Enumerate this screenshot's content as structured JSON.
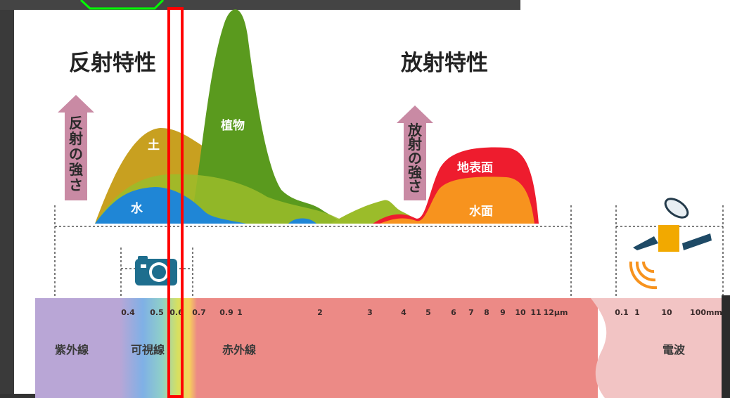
{
  "titles": {
    "reflection": "反射特性",
    "emission": "放射特性"
  },
  "axis_arrows": {
    "reflection_strength": [
      "反",
      "射",
      "の",
      "強",
      "さ"
    ],
    "emission_strength": [
      "放",
      "射",
      "の",
      "強",
      "さ"
    ]
  },
  "curve_labels": {
    "soil": "土",
    "water": "水",
    "vegetation": "植物",
    "ground_surface": "地表面",
    "water_surface": "水面"
  },
  "ticks_micron": [
    "0.4",
    "0.5",
    "0.6",
    "0.7",
    "0.9",
    "1",
    "2",
    "3",
    "4",
    "5",
    "6",
    "7",
    "8",
    "9",
    "10",
    "11",
    "12μm"
  ],
  "ticks_radio": [
    "0.1",
    "1",
    "10",
    "100mm"
  ],
  "bands": {
    "ultraviolet": "紫外線",
    "visible": "可視線",
    "infrared": "赤外線",
    "radio": "電波"
  },
  "icons": [
    "camera-icon",
    "satellite-icon"
  ],
  "colors": {
    "uv": "#b9a6d6",
    "infrared": "#ec8a86",
    "radio": "#f2c4c4",
    "vegetation": "#5a9a1e",
    "soil": "#c8a020",
    "water": "#1f86d6",
    "ground": "#ee1c2e",
    "water_surface": "#f7931e",
    "arrow": "#c98aa4",
    "highlight": "#ff0000",
    "marker": "#00ff00"
  }
}
